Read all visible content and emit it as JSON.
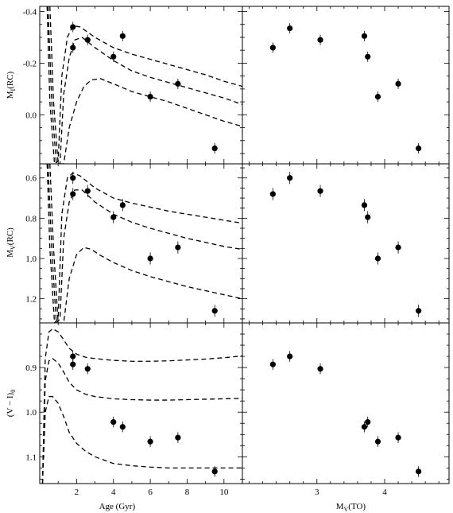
{
  "chart_data": {
    "type": "scatter",
    "figure": "3x2 panel grid: rows share y-axis, columns share x-axis",
    "columns": [
      {
        "xlabel": "Age (Gyr)",
        "xlim": [
          0,
          11
        ],
        "xticks": [
          2,
          4,
          6,
          8,
          10
        ],
        "xtick_labels": [
          "2",
          "4",
          "6",
          "8",
          "10"
        ]
      },
      {
        "xlabel": "M_V(TO)",
        "xlabel_main": "M",
        "xlabel_sub": "V",
        "xlabel_tail": "(TO)",
        "xlim": [
          1.9,
          4.95
        ],
        "xticks": [
          3,
          4
        ],
        "xtick_labels": [
          "3",
          "4"
        ]
      }
    ],
    "rows": [
      {
        "ylabel": "M_I(RC)",
        "ylabel_main": "M",
        "ylabel_sub": "I",
        "ylabel_tail": "(RC)",
        "ylim": [
          -0.42,
          0.19
        ],
        "inverted": true,
        "yticks": [
          -0.4,
          -0.2,
          0.0
        ],
        "ytick_labels": [
          "-0.4",
          "-0.2",
          "0.0"
        ]
      },
      {
        "ylabel": "M_V(RC)",
        "ylabel_main": "M",
        "ylabel_sub": "V",
        "ylabel_tail": "(RC)",
        "ylim": [
          0.53,
          1.32
        ],
        "inverted": false,
        "yticks": [
          0.6,
          0.8,
          1.0,
          1.2
        ],
        "ytick_labels": [
          "0.6",
          "0.8",
          "1.0",
          "1.2"
        ]
      },
      {
        "ylabel": "(V - I)_0",
        "ylabel_main": "(V − I)",
        "ylabel_sub": "0",
        "ylabel_tail": "",
        "ylim": [
          0.8,
          1.16
        ],
        "inverted": false,
        "yticks": [
          0.9,
          1.0,
          1.1
        ],
        "ytick_labels": [
          "0.9",
          "1.0",
          "1.1"
        ]
      }
    ],
    "points_age": {
      "x": [
        1.8,
        1.8,
        2.6,
        4.0,
        4.5,
        6.0,
        7.5,
        9.5
      ],
      "MI": [
        -0.34,
        -0.26,
        -0.29,
        -0.225,
        -0.305,
        -0.07,
        -0.12,
        0.13
      ],
      "MV": [
        0.6,
        0.68,
        0.665,
        0.795,
        0.735,
        1.0,
        0.945,
        1.26
      ],
      "VI": [
        0.875,
        0.893,
        0.903,
        1.022,
        1.033,
        1.066,
        1.057,
        1.133
      ]
    },
    "points_mto": {
      "x": [
        2.35,
        2.6,
        3.05,
        3.7,
        3.75,
        3.9,
        4.2,
        4.5
      ],
      "MI": [
        -0.26,
        -0.335,
        -0.29,
        -0.305,
        -0.225,
        -0.07,
        -0.12,
        0.13
      ],
      "MV": [
        0.68,
        0.6,
        0.665,
        0.735,
        0.795,
        1.0,
        0.945,
        1.26
      ],
      "VI": [
        0.893,
        0.875,
        0.903,
        1.033,
        1.022,
        1.066,
        1.057,
        1.133
      ]
    },
    "error_bars": {
      "MI": 0.02,
      "MV": 0.03,
      "VI": 0.012
    },
    "model_curves": {
      "MI": [
        {
          "x": [
            0.4,
            0.55,
            0.8,
            1.0,
            1.2,
            1.5,
            1.8,
            2.2,
            3.0,
            4.0,
            5.0,
            6.0,
            7.0,
            8.0,
            9.0,
            10.0,
            11.0
          ],
          "y": [
            -0.42,
            -0.05,
            0.19,
            0.18,
            -0.15,
            -0.3,
            -0.345,
            -0.34,
            -0.3,
            -0.26,
            -0.235,
            -0.215,
            -0.195,
            -0.175,
            -0.155,
            -0.13,
            -0.11
          ]
        },
        {
          "x": [
            0.45,
            0.65,
            0.9,
            1.1,
            1.3,
            1.6,
            1.9,
            2.3,
            3.0,
            4.0,
            5.0,
            6.0,
            7.0,
            8.0,
            9.0,
            10.0,
            11.0
          ],
          "y": [
            -0.42,
            -0.05,
            0.19,
            0.19,
            -0.08,
            -0.22,
            -0.29,
            -0.3,
            -0.26,
            -0.21,
            -0.17,
            -0.145,
            -0.125,
            -0.105,
            -0.085,
            -0.065,
            -0.04
          ]
        },
        {
          "x": [
            0.55,
            0.75,
            1.0,
            1.3,
            1.6,
            2.0,
            2.4,
            2.8,
            3.3,
            4.0,
            5.0,
            6.0,
            7.0,
            8.0,
            9.0,
            10.0,
            11.0
          ],
          "y": [
            -0.42,
            -0.05,
            0.19,
            0.19,
            0.05,
            -0.05,
            -0.11,
            -0.135,
            -0.14,
            -0.12,
            -0.09,
            -0.07,
            -0.05,
            -0.025,
            0.0,
            0.025,
            0.045
          ]
        }
      ],
      "MV": [
        {
          "x": [
            0.4,
            0.55,
            0.8,
            1.0,
            1.2,
            1.5,
            1.8,
            2.2,
            3.0,
            4.0,
            5.0,
            6.0,
            7.0,
            8.0,
            9.0,
            10.0,
            11.0
          ],
          "y": [
            0.53,
            0.95,
            1.32,
            1.3,
            0.78,
            0.6,
            0.575,
            0.59,
            0.65,
            0.7,
            0.725,
            0.745,
            0.765,
            0.78,
            0.795,
            0.81,
            0.825
          ]
        },
        {
          "x": [
            0.45,
            0.65,
            0.9,
            1.1,
            1.3,
            1.6,
            1.9,
            2.3,
            3.0,
            4.0,
            5.0,
            6.0,
            7.0,
            8.0,
            9.0,
            10.0,
            11.0
          ],
          "y": [
            0.53,
            0.95,
            1.32,
            1.3,
            0.9,
            0.72,
            0.66,
            0.66,
            0.72,
            0.78,
            0.82,
            0.85,
            0.875,
            0.9,
            0.92,
            0.94,
            0.955
          ]
        },
        {
          "x": [
            0.55,
            0.75,
            1.0,
            1.3,
            1.6,
            2.0,
            2.4,
            2.8,
            3.3,
            4.0,
            5.0,
            6.0,
            7.0,
            8.0,
            9.0,
            10.0,
            11.0
          ],
          "y": [
            0.53,
            0.95,
            1.32,
            1.32,
            1.1,
            0.98,
            0.945,
            0.955,
            0.985,
            1.02,
            1.06,
            1.09,
            1.115,
            1.14,
            1.16,
            1.18,
            1.2
          ]
        }
      ],
      "VI": [
        {
          "x": [
            0.15,
            0.3,
            0.5,
            0.7,
            1.0,
            1.3,
            1.6,
            2.0,
            2.5,
            3.0,
            4.0,
            5.0,
            6.0,
            7.0,
            8.0,
            9.0,
            10.0,
            11.0
          ],
          "y": [
            1.16,
            0.88,
            0.82,
            0.813,
            0.82,
            0.838,
            0.857,
            0.87,
            0.877,
            0.88,
            0.884,
            0.886,
            0.886,
            0.885,
            0.883,
            0.881,
            0.878,
            0.874
          ]
        },
        {
          "x": [
            0.15,
            0.3,
            0.5,
            0.7,
            1.0,
            1.3,
            1.6,
            2.0,
            2.5,
            3.0,
            4.0,
            5.0,
            6.0,
            7.0,
            8.0,
            9.0,
            10.0,
            11.0
          ],
          "y": [
            1.16,
            0.93,
            0.885,
            0.88,
            0.89,
            0.91,
            0.933,
            0.95,
            0.96,
            0.965,
            0.97,
            0.972,
            0.973,
            0.973,
            0.972,
            0.971,
            0.97,
            0.969
          ]
        },
        {
          "x": [
            0.15,
            0.3,
            0.5,
            0.7,
            1.0,
            1.3,
            1.6,
            2.0,
            2.5,
            3.0,
            4.0,
            5.0,
            6.0,
            7.0,
            8.0,
            9.0,
            10.0,
            11.0
          ],
          "y": [
            1.16,
            1.0,
            0.965,
            0.965,
            0.98,
            1.01,
            1.045,
            1.07,
            1.088,
            1.1,
            1.115,
            1.12,
            1.123,
            1.125,
            1.125,
            1.125,
            1.125,
            1.125
          ]
        }
      ]
    },
    "grid": false,
    "legend": "none"
  }
}
